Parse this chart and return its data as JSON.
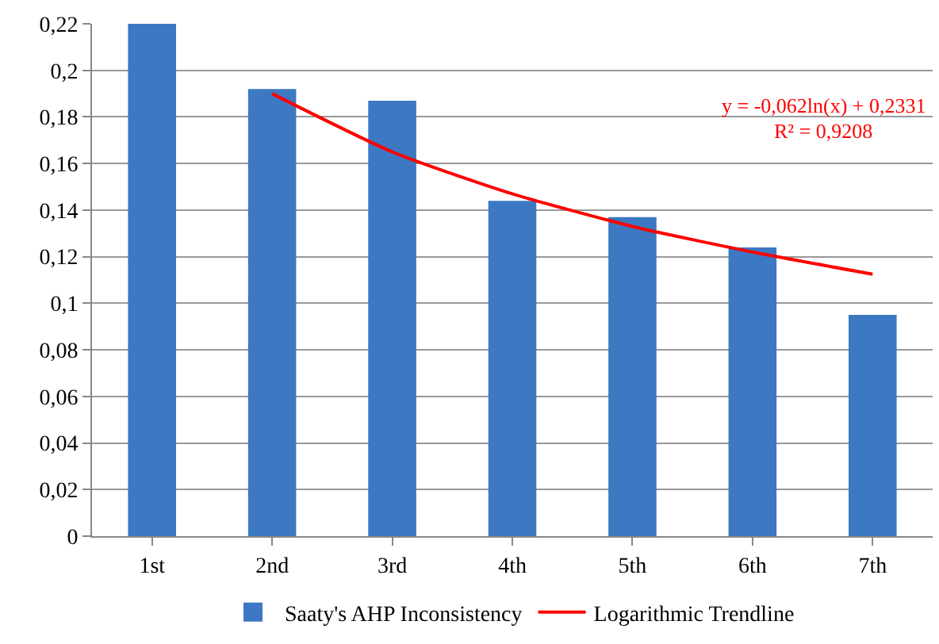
{
  "chart_data": {
    "type": "bar",
    "categories": [
      "1st",
      "2nd",
      "3rd",
      "4th",
      "5th",
      "6th",
      "7th"
    ],
    "series": [
      {
        "name": "Saaty's AHP Inconsistency",
        "color": "#3d78c2",
        "values": [
          0.22,
          0.192,
          0.187,
          0.144,
          0.137,
          0.124,
          0.095
        ]
      },
      {
        "name": "Logarithmic Trendline",
        "type": "line",
        "color": "#ff0000",
        "values": [
          null,
          0.19,
          0.165,
          0.147,
          0.133,
          0.122,
          0.1125
        ]
      }
    ],
    "ylim": [
      0,
      0.22
    ],
    "yticks": [
      0,
      {
        "value": 0.02,
        "label": "0,02"
      },
      {
        "value": 0.04,
        "label": "0,04"
      },
      {
        "value": 0.06,
        "label": "0,06"
      },
      {
        "value": 0.08,
        "label": "0,08"
      },
      {
        "value": 0.1,
        "label": "0,1"
      },
      {
        "value": 0.12,
        "label": "0,12"
      },
      {
        "value": 0.14,
        "label": "0,14"
      },
      {
        "value": 0.16,
        "label": "0,16"
      },
      {
        "value": 0.18,
        "label": "0,18"
      },
      {
        "value": 0.2,
        "label": "0,2"
      },
      {
        "value": 0.22,
        "label": "0,22"
      }
    ],
    "annotations": [
      "y = -0,062ln(x) + 0,2331",
      "R² = 0,9208"
    ],
    "grid": "y",
    "legend": "bottom",
    "marker": "none",
    "line_style": "solid"
  }
}
